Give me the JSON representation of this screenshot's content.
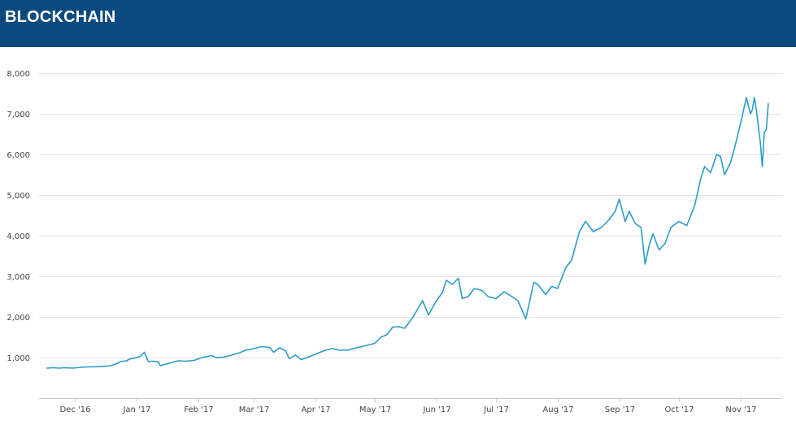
{
  "header": {
    "title": "BLOCKCHAIN",
    "background": "#0b4a7e"
  },
  "colors": {
    "line": "#2b9cc8",
    "grid": "#e4e4e4",
    "axis": "#c8c8c8",
    "tick_text": "#444444"
  },
  "chart_data": {
    "type": "line",
    "title": "",
    "xlabel": "",
    "ylabel": "",
    "ylim": [
      0,
      8000
    ],
    "y_ticks": [
      {
        "value": 1000,
        "label": "1,000"
      },
      {
        "value": 2000,
        "label": "2,000"
      },
      {
        "value": 3000,
        "label": "3,000"
      },
      {
        "value": 4000,
        "label": "4,000"
      },
      {
        "value": 5000,
        "label": "5,000"
      },
      {
        "value": 6000,
        "label": "6,000"
      },
      {
        "value": 7000,
        "label": "7,000"
      },
      {
        "value": 8000,
        "label": "8,000"
      }
    ],
    "xlim": [
      "2016-11-13",
      "2017-11-22"
    ],
    "x_ticks": [
      {
        "date": "2016-12-01",
        "label": "Dec '16"
      },
      {
        "date": "2017-01-01",
        "label": "Jan '17"
      },
      {
        "date": "2017-02-01",
        "label": "Feb '17"
      },
      {
        "date": "2017-03-01",
        "label": "Mar '17"
      },
      {
        "date": "2017-04-01",
        "label": "Apr '17"
      },
      {
        "date": "2017-05-01",
        "label": "May '17"
      },
      {
        "date": "2017-06-01",
        "label": "Jun '17"
      },
      {
        "date": "2017-07-01",
        "label": "Jul '17"
      },
      {
        "date": "2017-08-01",
        "label": "Aug '17"
      },
      {
        "date": "2017-09-01",
        "label": "Sep '17"
      },
      {
        "date": "2017-10-01",
        "label": "Oct '17"
      },
      {
        "date": "2017-11-01",
        "label": "Nov '17"
      }
    ],
    "grid": true,
    "series": [
      {
        "color": "#2b9cc8",
        "points": [
          [
            "2016-11-17",
            740
          ],
          [
            "2016-11-20",
            750
          ],
          [
            "2016-11-23",
            740
          ],
          [
            "2016-11-26",
            750
          ],
          [
            "2016-11-30",
            740
          ],
          [
            "2016-12-04",
            760
          ],
          [
            "2016-12-08",
            770
          ],
          [
            "2016-12-12",
            775
          ],
          [
            "2016-12-16",
            785
          ],
          [
            "2016-12-19",
            800
          ],
          [
            "2016-12-22",
            850
          ],
          [
            "2016-12-24",
            900
          ],
          [
            "2016-12-27",
            920
          ],
          [
            "2016-12-29",
            970
          ],
          [
            "2017-01-01",
            1000
          ],
          [
            "2017-01-03",
            1030
          ],
          [
            "2017-01-05",
            1130
          ],
          [
            "2017-01-07",
            900
          ],
          [
            "2017-01-09",
            910
          ],
          [
            "2017-01-12",
            900
          ],
          [
            "2017-01-13",
            800
          ],
          [
            "2017-01-16",
            840
          ],
          [
            "2017-01-19",
            880
          ],
          [
            "2017-01-22",
            920
          ],
          [
            "2017-01-26",
            910
          ],
          [
            "2017-01-30",
            930
          ],
          [
            "2017-02-03",
            1000
          ],
          [
            "2017-02-08",
            1050
          ],
          [
            "2017-02-10",
            1000
          ],
          [
            "2017-02-14",
            1010
          ],
          [
            "2017-02-18",
            1060
          ],
          [
            "2017-02-22",
            1120
          ],
          [
            "2017-02-25",
            1180
          ],
          [
            "2017-03-01",
            1220
          ],
          [
            "2017-03-05",
            1270
          ],
          [
            "2017-03-09",
            1250
          ],
          [
            "2017-03-11",
            1130
          ],
          [
            "2017-03-14",
            1240
          ],
          [
            "2017-03-17",
            1170
          ],
          [
            "2017-03-19",
            970
          ],
          [
            "2017-03-22",
            1060
          ],
          [
            "2017-03-25",
            950
          ],
          [
            "2017-03-28",
            1000
          ],
          [
            "2017-04-01",
            1080
          ],
          [
            "2017-04-06",
            1180
          ],
          [
            "2017-04-10",
            1220
          ],
          [
            "2017-04-13",
            1180
          ],
          [
            "2017-04-17",
            1180
          ],
          [
            "2017-04-22",
            1240
          ],
          [
            "2017-04-27",
            1300
          ],
          [
            "2017-05-01",
            1350
          ],
          [
            "2017-05-04",
            1500
          ],
          [
            "2017-05-07",
            1560
          ],
          [
            "2017-05-10",
            1750
          ],
          [
            "2017-05-13",
            1760
          ],
          [
            "2017-05-16",
            1720
          ],
          [
            "2017-05-20",
            1980
          ],
          [
            "2017-05-25",
            2400
          ],
          [
            "2017-05-28",
            2050
          ],
          [
            "2017-06-01",
            2400
          ],
          [
            "2017-06-04",
            2600
          ],
          [
            "2017-06-06",
            2900
          ],
          [
            "2017-06-09",
            2800
          ],
          [
            "2017-06-12",
            2950
          ],
          [
            "2017-06-14",
            2450
          ],
          [
            "2017-06-17",
            2500
          ],
          [
            "2017-06-20",
            2700
          ],
          [
            "2017-06-24",
            2650
          ],
          [
            "2017-06-27",
            2500
          ],
          [
            "2017-07-01",
            2450
          ],
          [
            "2017-07-05",
            2620
          ],
          [
            "2017-07-09",
            2500
          ],
          [
            "2017-07-12",
            2400
          ],
          [
            "2017-07-16",
            1950
          ],
          [
            "2017-07-20",
            2850
          ],
          [
            "2017-07-22",
            2800
          ],
          [
            "2017-07-26",
            2550
          ],
          [
            "2017-07-29",
            2750
          ],
          [
            "2017-08-01",
            2700
          ],
          [
            "2017-08-05",
            3200
          ],
          [
            "2017-08-08",
            3400
          ],
          [
            "2017-08-12",
            4100
          ],
          [
            "2017-08-15",
            4350
          ],
          [
            "2017-08-19",
            4100
          ],
          [
            "2017-08-23",
            4200
          ],
          [
            "2017-08-27",
            4400
          ],
          [
            "2017-08-30",
            4600
          ],
          [
            "2017-09-01",
            4900
          ],
          [
            "2017-09-04",
            4350
          ],
          [
            "2017-09-06",
            4600
          ],
          [
            "2017-09-09",
            4300
          ],
          [
            "2017-09-12",
            4200
          ],
          [
            "2017-09-14",
            3300
          ],
          [
            "2017-09-16",
            3750
          ],
          [
            "2017-09-18",
            4050
          ],
          [
            "2017-09-21",
            3650
          ],
          [
            "2017-09-24",
            3800
          ],
          [
            "2017-09-27",
            4200
          ],
          [
            "2017-10-01",
            4350
          ],
          [
            "2017-10-05",
            4250
          ],
          [
            "2017-10-09",
            4750
          ],
          [
            "2017-10-12",
            5400
          ],
          [
            "2017-10-14",
            5700
          ],
          [
            "2017-10-17",
            5550
          ],
          [
            "2017-10-20",
            6000
          ],
          [
            "2017-10-22",
            5950
          ],
          [
            "2017-10-24",
            5500
          ],
          [
            "2017-10-27",
            5800
          ],
          [
            "2017-10-29",
            6150
          ],
          [
            "2017-11-01",
            6750
          ],
          [
            "2017-11-04",
            7400
          ],
          [
            "2017-11-06",
            7000
          ],
          [
            "2017-11-07",
            7100
          ],
          [
            "2017-11-08",
            7400
          ],
          [
            "2017-11-09",
            7100
          ],
          [
            "2017-11-11",
            6300
          ],
          [
            "2017-11-12",
            5700
          ],
          [
            "2017-11-13",
            6550
          ],
          [
            "2017-11-14",
            6600
          ],
          [
            "2017-11-15",
            7250
          ]
        ]
      }
    ]
  }
}
